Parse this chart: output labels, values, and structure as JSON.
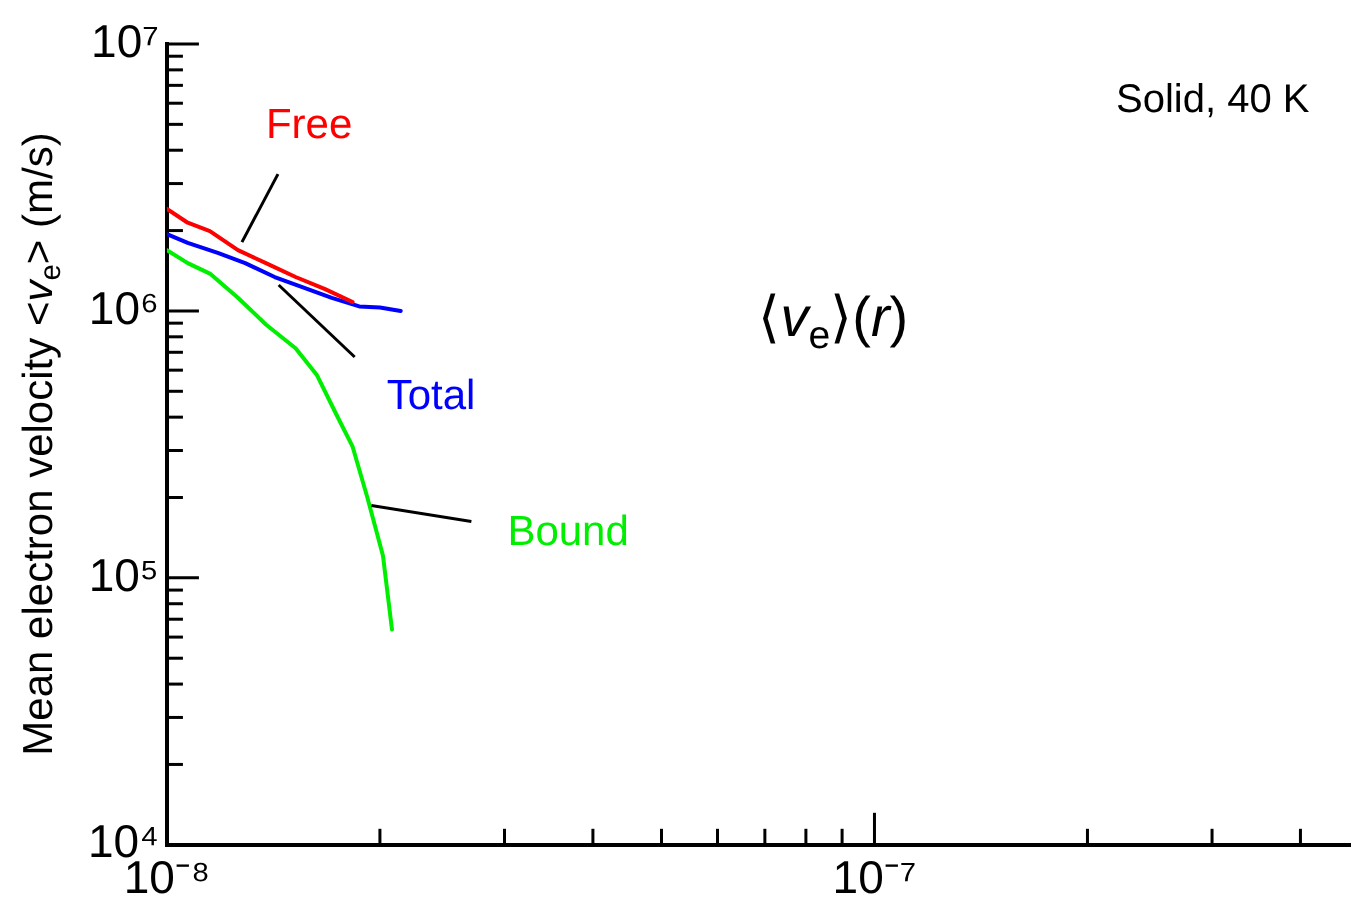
{
  "chart_data": {
    "type": "line",
    "ylabel": "Mean electron velocity <v$_{e}$> (m/s)",
    "annotations": [
      "Solid, 40 K",
      "⟨v$_{e}$⟩(r)"
    ],
    "log": "xy",
    "grid": false,
    "legend": false,
    "marker": "none",
    "line_style": "solid",
    "xlim": [
      1e-08,
      4.7e-07
    ],
    "xticks": [
      {
        "value": 1e-08,
        "label": "10⁻⁸"
      },
      {
        "value": 2e-08,
        "label": null
      },
      {
        "value": 3e-08,
        "label": null
      },
      {
        "value": 4e-08,
        "label": null
      },
      {
        "value": 5e-08,
        "label": null
      },
      {
        "value": 6e-08,
        "label": null
      },
      {
        "value": 7e-08,
        "label": null
      },
      {
        "value": 8e-08,
        "label": null
      },
      {
        "value": 9e-08,
        "label": null
      },
      {
        "value": 1e-07,
        "label": "10⁻⁷"
      },
      {
        "value": 2e-07,
        "label": null
      },
      {
        "value": 3e-07,
        "label": null
      },
      {
        "value": 4e-07,
        "label": null
      }
    ],
    "ylim": [
      10000,
      10000000
    ],
    "yticks": [
      {
        "value": 10000,
        "label": "10⁴"
      },
      {
        "value": 20000,
        "label": null
      },
      {
        "value": 30000,
        "label": null
      },
      {
        "value": 40000,
        "label": null
      },
      {
        "value": 50000,
        "label": null
      },
      {
        "value": 60000,
        "label": null
      },
      {
        "value": 70000,
        "label": null
      },
      {
        "value": 80000,
        "label": null
      },
      {
        "value": 90000,
        "label": null
      },
      {
        "value": 100000,
        "label": "10⁵"
      },
      {
        "value": 200000,
        "label": null
      },
      {
        "value": 300000,
        "label": null
      },
      {
        "value": 400000,
        "label": null
      },
      {
        "value": 500000,
        "label": null
      },
      {
        "value": 600000,
        "label": null
      },
      {
        "value": 700000,
        "label": null
      },
      {
        "value": 800000,
        "label": null
      },
      {
        "value": 900000,
        "label": null
      },
      {
        "value": 1000000,
        "label": "10⁶"
      },
      {
        "value": 2000000,
        "label": null
      },
      {
        "value": 3000000,
        "label": null
      },
      {
        "value": 4000000,
        "label": null
      },
      {
        "value": 5000000,
        "label": null
      },
      {
        "value": 6000000,
        "label": null
      },
      {
        "value": 7000000,
        "label": null
      },
      {
        "value": 8000000,
        "label": null
      },
      {
        "value": 9000000,
        "label": null
      },
      {
        "value": 10000000,
        "label": "10⁷"
      }
    ],
    "series": [
      {
        "name": "Free",
        "color": "#ff0000",
        "x": [
          1e-08,
          1.07e-08,
          1.15e-08,
          1.26e-08,
          1.38e-08,
          1.52e-08,
          1.67e-08,
          1.83e-08
        ],
        "values": [
          2410000.0,
          2140000.0,
          1990000.0,
          1690000.0,
          1510000.0,
          1340000.0,
          1210000.0,
          1080000.0
        ]
      },
      {
        "name": "Total",
        "color": "#0000ff",
        "x": [
          1e-08,
          1.07e-08,
          1.18e-08,
          1.29e-08,
          1.42e-08,
          1.55e-08,
          1.71e-08,
          1.87e-08,
          2e-08,
          2.14e-08
        ],
        "values": [
          1940000.0,
          1800000.0,
          1650000.0,
          1510000.0,
          1340000.0,
          1230000.0,
          1120000.0,
          1040000.0,
          1030000.0,
          1000000.0
        ]
      },
      {
        "name": "Bound",
        "color": "#00ee00",
        "x": [
          1e-08,
          1.07e-08,
          1.15e-08,
          1.26e-08,
          1.38e-08,
          1.52e-08,
          1.63e-08,
          1.74e-08,
          1.83e-08,
          1.92e-08,
          2.02e-08,
          2.08e-08
        ],
        "values": [
          1690000.0,
          1510000.0,
          1380000.0,
          1120000.0,
          890000.0,
          725000.0,
          574000.0,
          404000.0,
          310000.0,
          200000.0,
          121000.0,
          64000.0
        ]
      }
    ]
  }
}
